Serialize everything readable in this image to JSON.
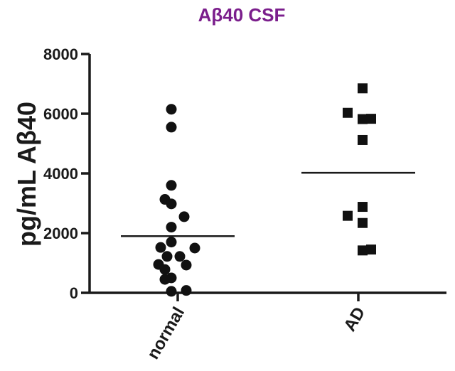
{
  "chart_data": {
    "type": "scatter",
    "title": "Aβ40 CSF",
    "title_color": "#7b1e8c",
    "ylabel": "pg/mL Aβ40",
    "xlabel": "",
    "ylim": [
      0,
      8000
    ],
    "yticks": [
      0,
      2000,
      4000,
      6000,
      8000
    ],
    "categories": [
      "normal",
      "AD"
    ],
    "grid": false,
    "series": [
      {
        "category": "normal",
        "marker": "circle",
        "color": "#111111",
        "mean": 1900,
        "points": [
          {
            "offset": -0.3,
            "y": 6150
          },
          {
            "offset": -0.3,
            "y": 5550
          },
          {
            "offset": -0.3,
            "y": 3600
          },
          {
            "offset": -0.6,
            "y": 3130
          },
          {
            "offset": -0.3,
            "y": 2980
          },
          {
            "offset": 0.3,
            "y": 2550
          },
          {
            "offset": -0.3,
            "y": 2200
          },
          {
            "offset": -0.3,
            "y": 1700
          },
          {
            "offset": -0.8,
            "y": 1520
          },
          {
            "offset": 0.8,
            "y": 1500
          },
          {
            "offset": -0.5,
            "y": 1220
          },
          {
            "offset": 0.1,
            "y": 1220
          },
          {
            "offset": -0.9,
            "y": 950
          },
          {
            "offset": 0.4,
            "y": 930
          },
          {
            "offset": -0.6,
            "y": 780
          },
          {
            "offset": -0.3,
            "y": 500
          },
          {
            "offset": -0.6,
            "y": 450
          },
          {
            "offset": -0.3,
            "y": 50
          },
          {
            "offset": 0.4,
            "y": 80
          }
        ]
      },
      {
        "category": "AD",
        "marker": "square",
        "color": "#111111",
        "mean": 4020,
        "points": [
          {
            "offset": 0.2,
            "y": 6850
          },
          {
            "offset": -0.5,
            "y": 6030
          },
          {
            "offset": 0.2,
            "y": 5820
          },
          {
            "offset": 0.6,
            "y": 5830
          },
          {
            "offset": 0.2,
            "y": 5120
          },
          {
            "offset": 0.2,
            "y": 2880
          },
          {
            "offset": -0.5,
            "y": 2580
          },
          {
            "offset": 0.2,
            "y": 2340
          },
          {
            "offset": 0.2,
            "y": 1420
          },
          {
            "offset": 0.6,
            "y": 1450
          }
        ]
      }
    ]
  }
}
